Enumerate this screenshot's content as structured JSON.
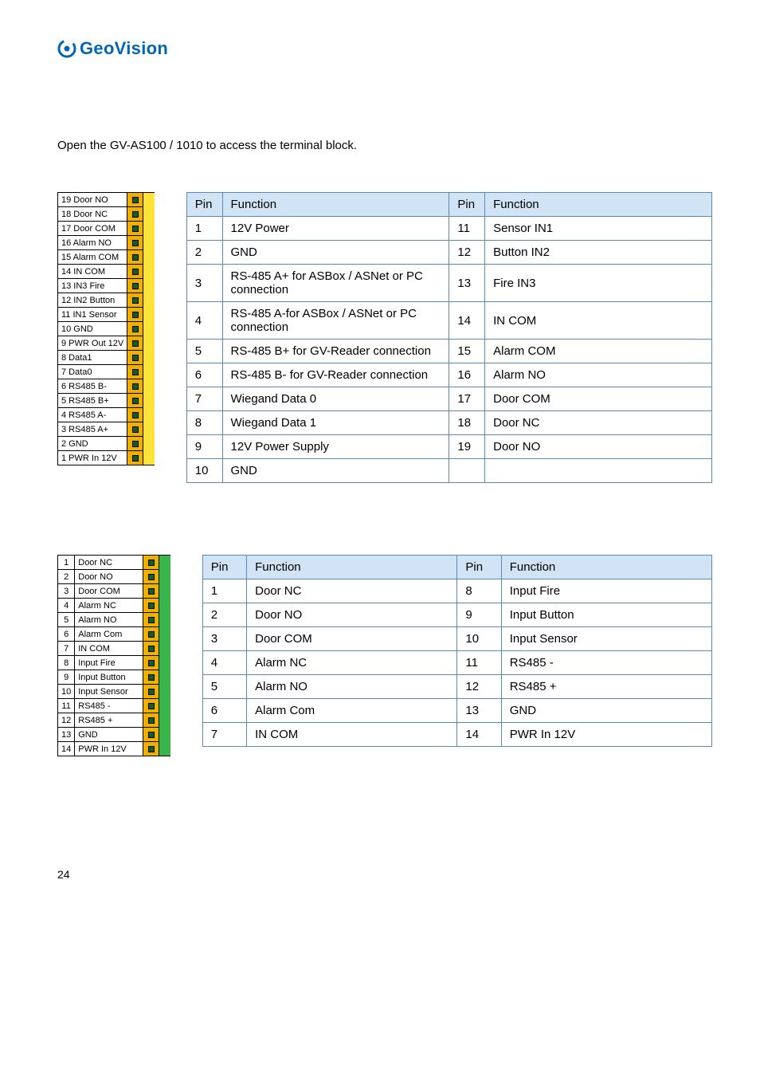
{
  "logo_text": "GeoVision",
  "intro_text": "Open the GV-AS100 / 1010 to access the terminal block.",
  "page_number": "24",
  "diagram_a": {
    "tail_color": "#ffe23a",
    "sq_bg": "#f0b000",
    "rows": [
      {
        "label": "19 Door NO"
      },
      {
        "label": "18 Door NC"
      },
      {
        "label": "17 Door COM"
      },
      {
        "label": "16 Alarm NO"
      },
      {
        "label": "15 Alarm COM"
      },
      {
        "label": "14 IN COM"
      },
      {
        "label": "13 IN3 Fire"
      },
      {
        "label": "12 IN2 Button"
      },
      {
        "label": "11 IN1 Sensor"
      },
      {
        "label": "10 GND"
      },
      {
        "label": "9 PWR Out 12V"
      },
      {
        "label": "8 Data1"
      },
      {
        "label": "7 Data0"
      },
      {
        "label": "6 RS485 B-"
      },
      {
        "label": "5 RS485 B+"
      },
      {
        "label": "4 RS485 A-"
      },
      {
        "label": "3 RS485 A+"
      },
      {
        "label": "2 GND"
      },
      {
        "label": "1 PWR In 12V"
      }
    ]
  },
  "table_a": {
    "h_pin": "Pin",
    "h_func": "Function",
    "rows": [
      {
        "p1": "1",
        "f1": "12V Power",
        "p2": "11",
        "f2": "Sensor IN1"
      },
      {
        "p1": "2",
        "f1": "GND",
        "p2": "12",
        "f2": "Button IN2"
      },
      {
        "p1": "3",
        "f1": "RS-485 A+ for ASBox / ASNet or PC connection",
        "p2": "13",
        "f2": "Fire IN3"
      },
      {
        "p1": "4",
        "f1": "RS-485 A-for ASBox / ASNet or PC connection",
        "p2": "14",
        "f2": "IN COM"
      },
      {
        "p1": "5",
        "f1": "RS-485 B+ for GV-Reader connection",
        "p2": "15",
        "f2": "Alarm COM"
      },
      {
        "p1": "6",
        "f1": "RS-485 B- for GV-Reader connection",
        "p2": "16",
        "f2": "Alarm NO"
      },
      {
        "p1": "7",
        "f1": "Wiegand Data 0",
        "p2": "17",
        "f2": "Door COM"
      },
      {
        "p1": "8",
        "f1": "Wiegand Data 1",
        "p2": "18",
        "f2": "Door NC"
      },
      {
        "p1": "9",
        "f1": "12V Power Supply",
        "p2": "19",
        "f2": "Door NO"
      },
      {
        "p1": "10",
        "f1": "GND",
        "p2": "",
        "f2": ""
      }
    ]
  },
  "diagram_b": {
    "tail_color": "#39b54a",
    "sq_bg": "#f0b000",
    "rows": [
      {
        "n": "1",
        "label": "Door NC"
      },
      {
        "n": "2",
        "label": "Door NO"
      },
      {
        "n": "3",
        "label": "Door COM"
      },
      {
        "n": "4",
        "label": "Alarm NC"
      },
      {
        "n": "5",
        "label": "Alarm NO"
      },
      {
        "n": "6",
        "label": "Alarm Com"
      },
      {
        "n": "7",
        "label": "IN COM"
      },
      {
        "n": "8",
        "label": "Input Fire"
      },
      {
        "n": "9",
        "label": "Input Button"
      },
      {
        "n": "10",
        "label": "Input Sensor"
      },
      {
        "n": "11",
        "label": "RS485 -"
      },
      {
        "n": "12",
        "label": "RS485 +"
      },
      {
        "n": "13",
        "label": "GND"
      },
      {
        "n": "14",
        "label": "PWR In 12V"
      }
    ]
  },
  "table_b": {
    "h_pin": "Pin",
    "h_func": "Function",
    "rows": [
      {
        "p1": "1",
        "f1": "Door NC",
        "p2": "8",
        "f2": "Input Fire"
      },
      {
        "p1": "2",
        "f1": "Door NO",
        "p2": "9",
        "f2": "Input Button"
      },
      {
        "p1": "3",
        "f1": "Door COM",
        "p2": "10",
        "f2": "Input Sensor"
      },
      {
        "p1": "4",
        "f1": "Alarm NC",
        "p2": "11",
        "f2": "RS485 -"
      },
      {
        "p1": "5",
        "f1": "Alarm NO",
        "p2": "12",
        "f2": "RS485 +"
      },
      {
        "p1": "6",
        "f1": "Alarm Com",
        "p2": "13",
        "f2": "GND"
      },
      {
        "p1": "7",
        "f1": "IN COM",
        "p2": "14",
        "f2": "PWR In 12V"
      }
    ]
  }
}
